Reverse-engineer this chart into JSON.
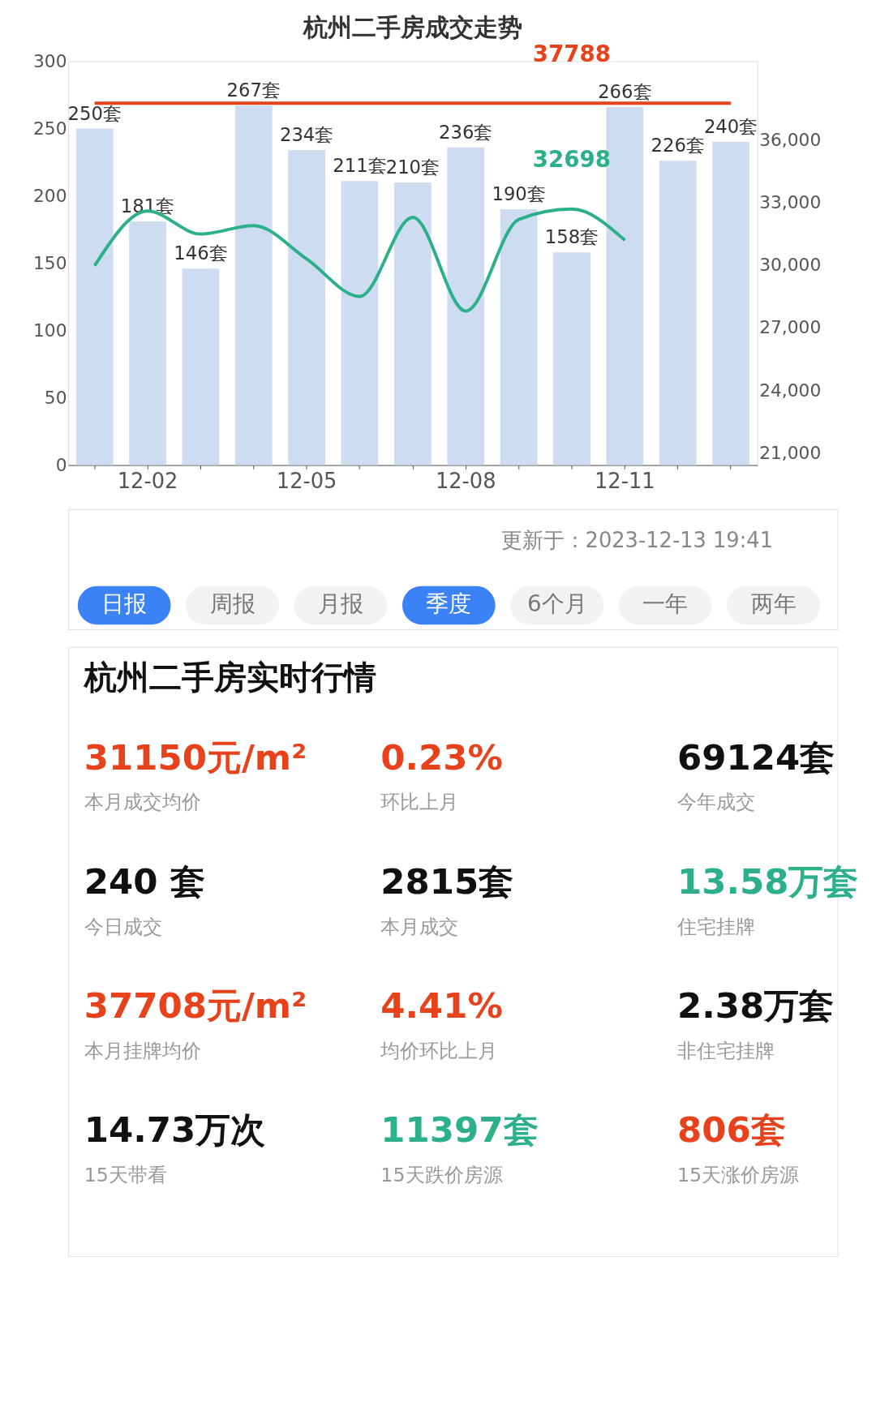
{
  "chart_data": [
    {
      "type": "bar",
      "title": "杭州二手房成交走势",
      "categories": [
        null,
        "12-02",
        null,
        null,
        "12-05",
        null,
        null,
        "12-08",
        null,
        null,
        "12-11",
        null,
        null
      ],
      "series": [
        {
          "type": "bar",
          "color": "#cddcf0",
          "values": [
            250,
            181,
            146,
            267,
            234,
            211,
            210,
            236,
            190,
            158,
            266,
            226,
            240
          ],
          "value_labels": [
            "250套",
            "181套",
            "146套",
            "267套",
            "234套",
            "211套",
            "210套",
            "236套",
            "190套",
            "158套",
            "266套",
            "226套",
            "240套"
          ]
        },
        {
          "type": "line",
          "axis": "y2",
          "color": "#e8421c",
          "values": [
            37788,
            37788,
            37788,
            37788,
            37788,
            37788,
            37788,
            37788,
            37788,
            37788,
            37788,
            37788,
            37788
          ],
          "value_labels": [
            null,
            null,
            null,
            null,
            null,
            null,
            null,
            null,
            null,
            "37788",
            null,
            null,
            null
          ]
        },
        {
          "type": "line",
          "axis": "y2",
          "color": "#2bb08a",
          "values": [
            29980,
            32600,
            31500,
            31900,
            30300,
            28500,
            32300,
            27800,
            32200,
            32698,
            31200,
            null,
            null
          ],
          "value_labels": [
            null,
            null,
            null,
            null,
            null,
            null,
            null,
            null,
            null,
            "32698",
            null,
            null,
            null
          ]
        }
      ],
      "ylim": [
        0,
        300
      ],
      "yticks": [
        0,
        50,
        100,
        150,
        200,
        250,
        300
      ],
      "y2lim": [
        20400,
        39800
      ],
      "y2ticks": [
        {
          "value": 21000,
          "label": "21,000"
        },
        {
          "value": 24000,
          "label": "24,000"
        },
        {
          "value": 27000,
          "label": "27,000"
        },
        {
          "value": 30000,
          "label": "30,000"
        },
        {
          "value": 33000,
          "label": "33,000"
        },
        {
          "value": 36000,
          "label": "36,000"
        }
      ],
      "annotations": [
        "日报",
        "周报",
        "月报",
        "季度",
        "6个月",
        "一年",
        "两年",
        "更新于：2023-12-13 19:41"
      ]
    },
    {
      "type": "other",
      "title": "杭州二手房实时行情",
      "annotations": [
        "31150元/m²",
        "本月成交均价",
        "0.23%",
        "环比上月",
        "69124套",
        "今年成交",
        "240 套",
        "今日成交",
        "2815套",
        "本月成交",
        "13.58万套",
        "住宅挂牌",
        "37708元/m²",
        "本月挂牌均价",
        "4.41%",
        "均价环比上月",
        "2.38万套",
        "非住宅挂牌",
        "14.73万次",
        "15天带看",
        "11397套",
        "15天跌价房源",
        "806套",
        "15天涨价房源"
      ],
      "colors": [
        "#e8421c",
        "#e8421c",
        "#111111",
        "#111111",
        "#111111",
        "#2bb08a",
        "#e8421c",
        "#e8421c",
        "#111111",
        "#111111",
        "#2bb08a",
        "#e8421c"
      ]
    }
  ]
}
